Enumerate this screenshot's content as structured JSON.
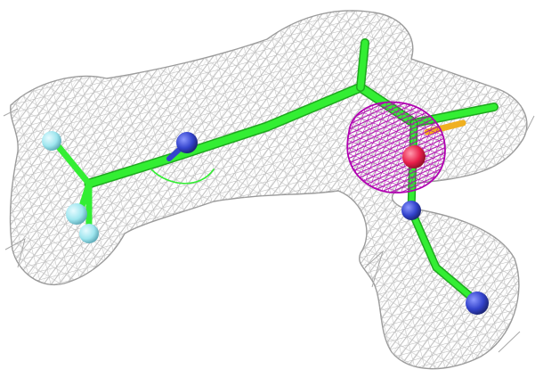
{
  "scene": {
    "kind": "electron-density-map",
    "background_color": "#ffffff",
    "colors": {
      "density_mesh": "#b8b8b8",
      "anomalous_mesh": "#b000b0",
      "carbon_bond": "#33ee33",
      "nitrogen_atom": "#3343cc",
      "fluorine_atom": "#9fe6ef",
      "oxygen_atom": "#e8204a",
      "sulfur_bond": "#f0b020"
    },
    "icons": [
      "ligand-stick-model",
      "density-mesh",
      "anomalous-density-mesh"
    ]
  }
}
